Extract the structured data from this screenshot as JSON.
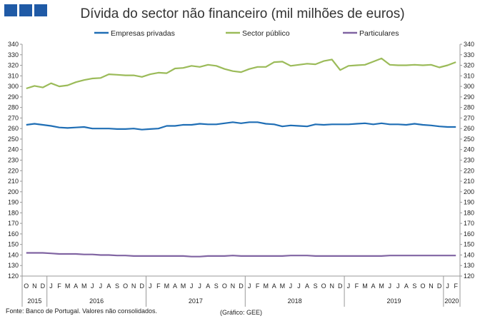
{
  "header": {
    "title": "Dívida do sector não financeiro (mil milhões de euros)",
    "logo": "ministry-logo-squares"
  },
  "footer": {
    "source": "Fonte: Banco de Portugal. Valores não consolidados.",
    "credit": "(Gráfico: GEE)"
  },
  "chart_data": {
    "type": "line",
    "title": "Dívida do sector não financeiro (mil milhões de euros)",
    "ylim": [
      120,
      340
    ],
    "ytick_step": 10,
    "y_axis_both_sides": true,
    "grid": false,
    "legend_position": "top",
    "x_month_labels": [
      "O",
      "N",
      "D",
      "J",
      "F",
      "M",
      "A",
      "M",
      "J",
      "J",
      "A",
      "S",
      "O",
      "N",
      "D",
      "J",
      "F",
      "M",
      "A",
      "M",
      "J",
      "J",
      "A",
      "S",
      "O",
      "N",
      "D",
      "J",
      "F",
      "M",
      "A",
      "M",
      "J",
      "J",
      "A",
      "S",
      "O",
      "N",
      "D",
      "J",
      "F",
      "M",
      "A",
      "M",
      "J",
      "J",
      "A",
      "S",
      "O",
      "N",
      "D",
      "J",
      "F"
    ],
    "x_year_groups": [
      {
        "label": "2015",
        "start": 0,
        "end": 2
      },
      {
        "label": "2016",
        "start": 3,
        "end": 14
      },
      {
        "label": "2017",
        "start": 15,
        "end": 26
      },
      {
        "label": "2018",
        "start": 27,
        "end": 38
      },
      {
        "label": "2019",
        "start": 39,
        "end": 50
      },
      {
        "label": "2020",
        "start": 51,
        "end": 52
      }
    ],
    "series": [
      {
        "name": "Empresas privadas",
        "color": "#1f6eb5",
        "values": [
          263.5,
          264.5,
          263.5,
          262.5,
          261.0,
          260.5,
          261.0,
          261.5,
          260.0,
          260.0,
          260.0,
          259.5,
          259.5,
          260.0,
          259.0,
          259.5,
          260.0,
          262.5,
          262.5,
          263.5,
          263.5,
          264.5,
          264.0,
          264.0,
          265.0,
          266.0,
          265.0,
          266.0,
          266.0,
          264.5,
          264.0,
          262.0,
          263.0,
          262.5,
          262.0,
          264.0,
          263.5,
          264.0,
          264.0,
          264.0,
          264.5,
          265.0,
          264.0,
          265.0,
          264.0,
          264.0,
          263.5,
          264.5,
          263.5,
          263.0,
          262.0,
          261.5,
          261.5
        ]
      },
      {
        "name": "Sector público",
        "color": "#9bbb59",
        "values": [
          298.0,
          300.5,
          299.0,
          303.0,
          300.0,
          301.0,
          304.0,
          306.0,
          307.5,
          308.0,
          311.5,
          311.0,
          310.5,
          310.5,
          309.0,
          311.5,
          313.0,
          312.5,
          317.0,
          317.5,
          319.5,
          318.5,
          320.5,
          319.5,
          316.5,
          314.5,
          313.5,
          316.5,
          318.5,
          318.5,
          323.0,
          323.5,
          319.5,
          320.5,
          321.5,
          321.0,
          324.0,
          325.5,
          315.5,
          319.5,
          320.0,
          320.5,
          323.5,
          326.5,
          320.5,
          320.0,
          320.0,
          320.5,
          320.0,
          320.5,
          318.0,
          320.0,
          323.0
        ]
      },
      {
        "name": "Particulares",
        "color": "#8064a2",
        "values": [
          142.0,
          142.0,
          142.0,
          141.5,
          141.0,
          141.0,
          141.0,
          140.5,
          140.5,
          140.0,
          140.0,
          139.5,
          139.5,
          139.0,
          139.0,
          139.0,
          139.0,
          139.0,
          139.0,
          139.0,
          138.5,
          138.5,
          139.0,
          139.0,
          139.0,
          139.5,
          139.0,
          139.0,
          139.0,
          139.0,
          139.0,
          139.0,
          139.5,
          139.5,
          139.5,
          139.0,
          139.0,
          139.0,
          139.0,
          139.0,
          139.0,
          139.0,
          139.0,
          139.0,
          139.5,
          139.5,
          139.5,
          139.5,
          139.5,
          139.5,
          139.5,
          139.5,
          139.5
        ]
      }
    ]
  }
}
